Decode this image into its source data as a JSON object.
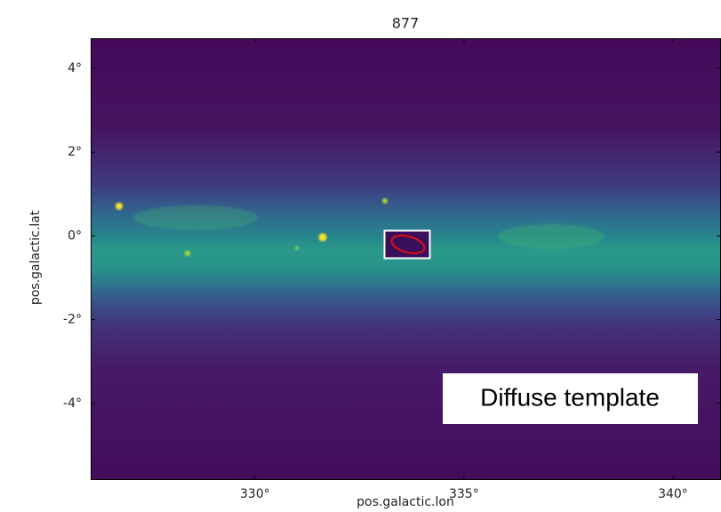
{
  "chart_data": {
    "type": "image",
    "title": "877",
    "xlabel": "pos.galactic.lon",
    "ylabel": "pos.galactic.lat",
    "annotation": "Diffuse template",
    "xlim": [
      326.07,
      341.15
    ],
    "ylim": [
      -5.83,
      4.72
    ],
    "xticks": [
      {
        "value": 330,
        "label": "330°"
      },
      {
        "value": 335,
        "label": "335°"
      },
      {
        "value": 340,
        "label": "340°"
      }
    ],
    "yticks": [
      {
        "value": -4,
        "label": "-4°"
      },
      {
        "value": -2,
        "label": "-2°"
      },
      {
        "value": 0,
        "label": "0°"
      },
      {
        "value": 2,
        "label": "2°"
      },
      {
        "value": 4,
        "label": "4°"
      }
    ]
  }
}
